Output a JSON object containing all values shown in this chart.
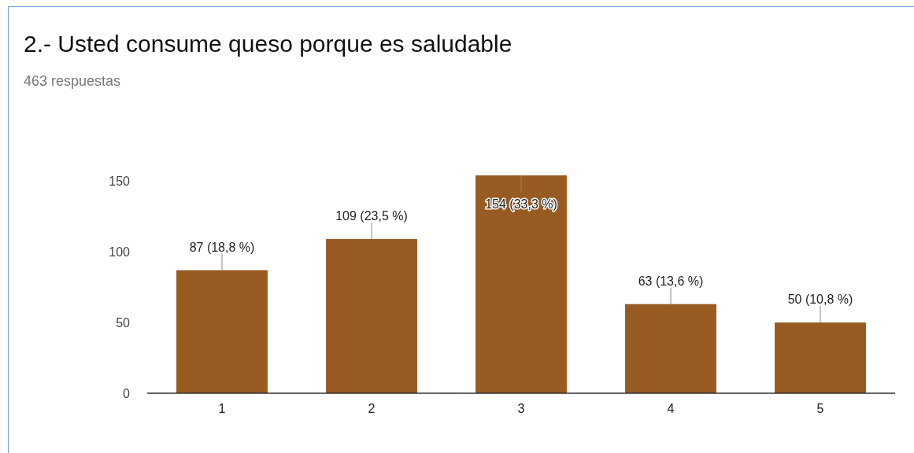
{
  "chart_data": {
    "type": "bar",
    "title": "2.- Usted consume queso porque es saludable",
    "subtitle": "463 respuestas",
    "categories": [
      "1",
      "2",
      "3",
      "4",
      "5"
    ],
    "values": [
      87,
      109,
      154,
      63,
      50
    ],
    "value_labels": [
      "87 (18,8 %)",
      "109 (23,5 %)",
      "154 (33,3 %)",
      "63 (13,6 %)",
      "50 (10,8 %)"
    ],
    "color": "#985b22",
    "ylim": [
      0,
      154
    ],
    "yticks": [
      0,
      50,
      100,
      150
    ]
  }
}
